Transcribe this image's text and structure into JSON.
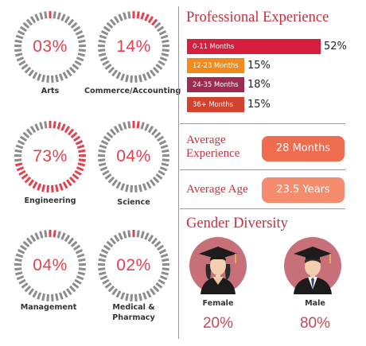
{
  "colors": {
    "accent": "#e2414f",
    "gauge_track": "#8c8c8c",
    "bar_0_11": "#d51f3d",
    "bar_12_23": "#f28a1e",
    "bar_24_35": "#9e2a4f",
    "bar_36_plus": "#d2432f",
    "pill_experience": "#f06c4e",
    "pill_age": "#f58c6d",
    "avatar_bg": "#c77079"
  },
  "chart_data": [
    {
      "type": "gauge",
      "gauges": [
        {
          "name": "Arts",
          "value": 3,
          "display": "03%"
        },
        {
          "name": "Commerce/Accounting",
          "value": 14,
          "display": "14%"
        },
        {
          "name": "Engineering",
          "value": 73,
          "display": "73%"
        },
        {
          "name": "Science",
          "value": 4,
          "display": "04%"
        },
        {
          "name": "Management",
          "value": 4,
          "display": "04%"
        },
        {
          "name": "Medical & Pharmacy",
          "value": 2,
          "display": "02%"
        }
      ]
    },
    {
      "type": "bar",
      "title": "Professional Experience",
      "categories": [
        "0-11 Months",
        "12-23 Months",
        "24-35 Months",
        "36+ Months"
      ],
      "values": [
        52,
        15,
        18,
        15
      ],
      "labels": [
        "52%",
        "15%",
        "18%",
        "15%"
      ],
      "unit": "%"
    }
  ],
  "stats": {
    "experience_label": "Average Experience",
    "experience_value": "28 Months",
    "age_label": "Average Age",
    "age_value": "23.5 Years"
  },
  "gender": {
    "title": "Gender Diversity",
    "female_label": "Female",
    "female_value": "20%",
    "female_icon": "female-graduate-icon",
    "male_label": "Male",
    "male_value": "80%",
    "male_icon": "male-graduate-icon"
  }
}
